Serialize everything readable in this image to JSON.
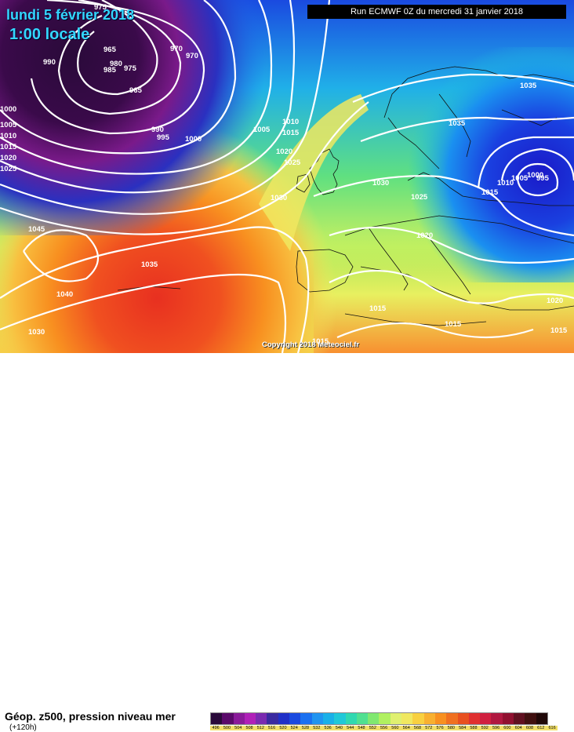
{
  "header": {
    "date": "lundi 5 février 2018",
    "time": "1:00 locale",
    "run": "Run ECMWF 0Z du mercredi 31 janvier 2018"
  },
  "copyright": "Copyright 2018 Meteociel.fr",
  "footer": {
    "title": "Géop. z500, pression niveau mer",
    "subtitle": "(+120h)"
  },
  "scale": {
    "colors": [
      "#2a0a3a",
      "#5a0a6a",
      "#8a1a9a",
      "#b020b8",
      "#7a2ab0",
      "#3a2aa0",
      "#2030c8",
      "#1a4ae0",
      "#1a70f0",
      "#2094f0",
      "#1ab0e8",
      "#20c8d8",
      "#30d8b0",
      "#50e090",
      "#80e870",
      "#b0f060",
      "#e0f070",
      "#f0e860",
      "#f8d040",
      "#f8b030",
      "#f89020",
      "#f07020",
      "#e85020",
      "#e03030",
      "#d02040",
      "#b01840",
      "#901030",
      "#601020",
      "#401010",
      "#200808"
    ],
    "labels": [
      "496",
      "500",
      "504",
      "508",
      "512",
      "516",
      "520",
      "524",
      "528",
      "532",
      "536",
      "540",
      "544",
      "548",
      "552",
      "556",
      "560",
      "564",
      "568",
      "572",
      "576",
      "580",
      "584",
      "588",
      "592",
      "596",
      "600",
      "604",
      "608",
      "612",
      "616"
    ]
  },
  "pressure_labels": [
    "975",
    "965",
    "970",
    "970",
    "990",
    "980",
    "985",
    "975",
    "965",
    "990",
    "995",
    "1000",
    "1005",
    "1010",
    "1015",
    "1000",
    "1005",
    "1010",
    "1015",
    "1020",
    "1025",
    "1030",
    "1020",
    "1025",
    "1035",
    "1035",
    "1030",
    "1025",
    "1020",
    "1015",
    "1010",
    "1005",
    "1000",
    "995",
    "1045",
    "1035",
    "1040",
    "1030",
    "1015",
    "1015",
    "1015",
    "1020",
    "1015"
  ]
}
